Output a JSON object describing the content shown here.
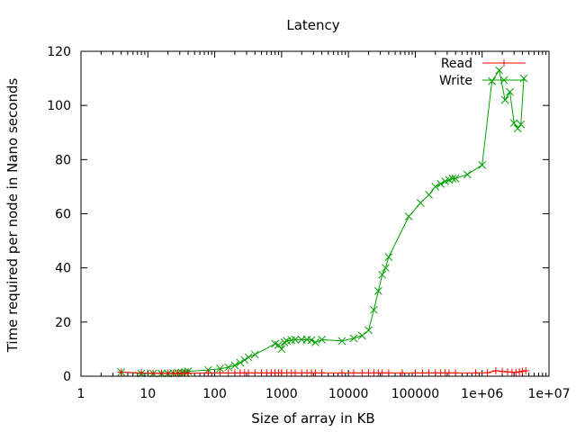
{
  "chart_data": {
    "type": "line",
    "title": "Latency",
    "xlabel": "Size of array in KB",
    "ylabel": "Time required per node in Nano seconds",
    "xscale": "log10",
    "xlim": [
      1,
      10000000
    ],
    "ylim": [
      0,
      120
    ],
    "x_ticks": [
      1,
      10,
      100,
      1000,
      10000,
      100000,
      1000000,
      10000000
    ],
    "x_tick_labels": [
      "1",
      "10",
      "100",
      "1000",
      "10000",
      "100000",
      "1e+06",
      "1e+07"
    ],
    "y_ticks": [
      0,
      20,
      40,
      60,
      80,
      100,
      120
    ],
    "y_tick_labels": [
      "0",
      "20",
      "40",
      "60",
      "80",
      "100",
      "120"
    ],
    "grid": false,
    "legend": "top-right",
    "series": [
      {
        "name": "Read",
        "color": "#ff0000",
        "marker": "plus",
        "x": [
          4,
          8,
          12,
          16,
          20,
          24,
          28,
          32,
          36,
          40,
          80,
          120,
          160,
          200,
          240,
          280,
          320,
          400,
          500,
          600,
          700,
          800,
          900,
          1000,
          1200,
          1400,
          1600,
          2000,
          2400,
          2800,
          3200,
          4000,
          8000,
          12000,
          16000,
          20000,
          24000,
          28000,
          32000,
          40000,
          64000,
          100000,
          128000,
          160000,
          200000,
          240000,
          280000,
          320000,
          400000,
          800000,
          1200000,
          1600000,
          2000000,
          2400000,
          2800000,
          3200000,
          3600000,
          4000000,
          4500000
        ],
        "y": [
          1.5,
          1.2,
          1.1,
          1.1,
          1.1,
          1.1,
          1.1,
          1.1,
          1.1,
          1.1,
          1.2,
          1.2,
          1.2,
          1.2,
          1.2,
          1.2,
          1.2,
          1.2,
          1.2,
          1.2,
          1.2,
          1.2,
          1.2,
          1.2,
          1.2,
          1.2,
          1.2,
          1.2,
          1.2,
          1.2,
          1.2,
          1.2,
          1.2,
          1.2,
          1.2,
          1.2,
          1.2,
          1.2,
          1.2,
          1.2,
          1.2,
          1.2,
          1.2,
          1.2,
          1.2,
          1.2,
          1.2,
          1.2,
          1.2,
          1.2,
          1.3,
          2.0,
          1.8,
          1.6,
          1.5,
          1.4,
          1.6,
          1.8,
          2.0
        ]
      },
      {
        "name": "Write",
        "color": "#00a000",
        "marker": "cross",
        "x": [
          4,
          8,
          12,
          16,
          20,
          24,
          28,
          32,
          36,
          40,
          80,
          120,
          160,
          200,
          240,
          280,
          320,
          400,
          800,
          900,
          1000,
          1100,
          1200,
          1400,
          1600,
          2000,
          2400,
          2800,
          3200,
          4000,
          8000,
          12000,
          16000,
          20000,
          24000,
          28000,
          32000,
          36000,
          40000,
          80000,
          120000,
          160000,
          200000,
          240000,
          280000,
          320000,
          360000,
          400000,
          600000,
          1000000,
          1400000,
          1800000,
          2200000,
          2600000,
          3000000,
          3400000,
          3800000,
          4200000
        ],
        "y": [
          1.5,
          1.0,
          1.0,
          1.0,
          1.0,
          1.1,
          1.2,
          1.3,
          1.5,
          1.8,
          2.3,
          2.8,
          3.3,
          4.0,
          5.0,
          6.0,
          7.0,
          8.0,
          12.0,
          11.5,
          10.0,
          12.5,
          13.0,
          13.3,
          13.5,
          13.5,
          13.5,
          13.3,
          12.5,
          13.5,
          13.0,
          14.0,
          15.0,
          17.0,
          24.5,
          31.5,
          37.5,
          40.0,
          44.0,
          59.0,
          64.0,
          67.0,
          70.0,
          71.0,
          72.0,
          72.5,
          73.0,
          73.0,
          74.5,
          78.0,
          109.0,
          113.0,
          102.0,
          105.0,
          93.5,
          91.5,
          93.0,
          110.0
        ]
      }
    ]
  }
}
